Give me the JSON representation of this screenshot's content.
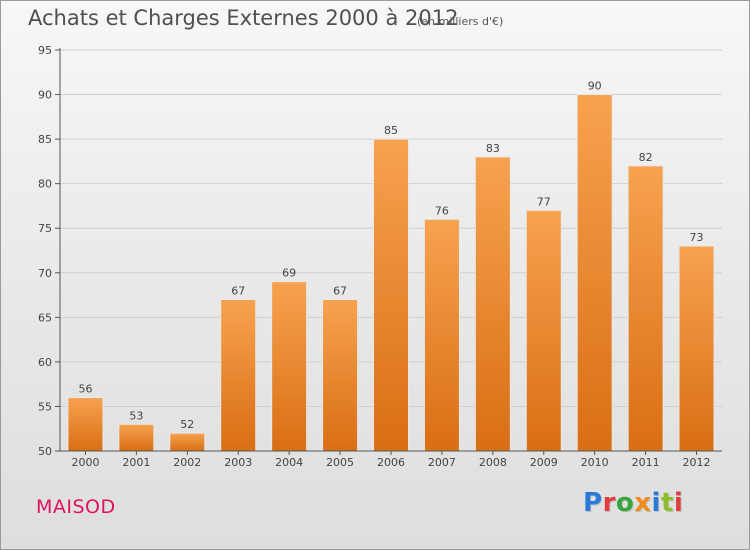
{
  "header": {
    "title": "Achats et Charges Externes 2000 à 2012",
    "unit_note": "(en milliers d'€)"
  },
  "footer": {
    "commune": "MAISOD",
    "brand": "Proxiti",
    "brand_colors": [
      "#2a7ad8",
      "#e03c3c",
      "#3aa63a",
      "#f08c1e",
      "#2a7ad8",
      "#8bbf2a",
      "#e03c3c"
    ]
  },
  "colors": {
    "bar_top": "#f7a24f",
    "bar_bottom": "#d96e14",
    "commune": "#e0115f"
  },
  "chart_data": {
    "type": "bar",
    "title": "Achats et Charges Externes 2000 à 2012",
    "subtitle": "(en milliers d'€)",
    "categories": [
      "2000",
      "2001",
      "2002",
      "2003",
      "2004",
      "2005",
      "2006",
      "2007",
      "2008",
      "2009",
      "2010",
      "2011",
      "2012"
    ],
    "values": [
      56,
      53,
      52,
      67,
      69,
      67,
      85,
      76,
      83,
      77,
      90,
      82,
      73
    ],
    "ylim": [
      50,
      95
    ],
    "yticks": [
      50,
      55,
      60,
      65,
      70,
      75,
      80,
      85,
      90,
      95
    ],
    "grid": true
  }
}
